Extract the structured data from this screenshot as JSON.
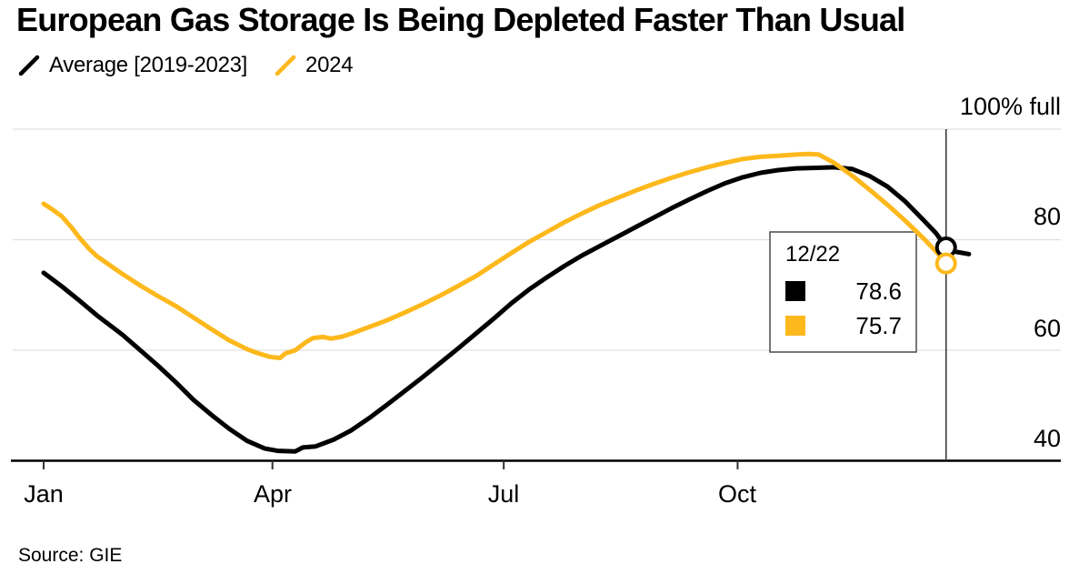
{
  "header": {
    "title": "European Gas Storage Is Being Depleted Faster Than Usual"
  },
  "legend": {
    "items": [
      {
        "label": "Average [2019-2023]",
        "color": "#000000"
      },
      {
        "label": "2024",
        "color": "#fdb81c"
      }
    ]
  },
  "footer": {
    "source": "Source: GIE"
  },
  "colors": {
    "average": "#000000",
    "year2024": "#fdb81c",
    "grid": "#e0e0e0",
    "axis": "#000000",
    "hover_line": "#3a3a3a",
    "tooltip_border": "#4a4a4a"
  },
  "chart_data": {
    "type": "line",
    "title": "European Gas Storage Is Being Depleted Faster Than Usual",
    "unit": "% full",
    "grid": "horizontal",
    "legend_position": "top-left",
    "x_axis": {
      "ticks": [
        "Jan",
        "Apr",
        "Jul",
        "Oct"
      ],
      "range": "Jan 1 - Dec 31"
    },
    "y_axis": {
      "top_label": "100% full",
      "ticks": [
        "80",
        "60",
        "40"
      ],
      "tick_values": [
        80,
        60,
        40
      ],
      "ylim": [
        40,
        100
      ]
    },
    "series": [
      {
        "name": "Average [2019-2023]",
        "color": "#000000",
        "points": [
          [
            "1/1",
            74.0
          ],
          [
            "1/8",
            71.6
          ],
          [
            "1/15",
            69.0
          ],
          [
            "1/22",
            66.3
          ],
          [
            "2/1",
            62.8
          ],
          [
            "2/8",
            60.0
          ],
          [
            "2/15",
            57.2
          ],
          [
            "2/22",
            54.2
          ],
          [
            "3/1",
            51.0
          ],
          [
            "3/8",
            48.3
          ],
          [
            "3/15",
            45.8
          ],
          [
            "3/22",
            43.6
          ],
          [
            "3/29",
            42.2
          ],
          [
            "4/3",
            41.8
          ],
          [
            "4/10",
            41.7
          ],
          [
            "4/13",
            42.4
          ],
          [
            "4/18",
            42.6
          ],
          [
            "4/25",
            43.8
          ],
          [
            "5/2",
            45.5
          ],
          [
            "5/9",
            47.7
          ],
          [
            "5/16",
            50.1
          ],
          [
            "5/23",
            52.6
          ],
          [
            "5/30",
            55.1
          ],
          [
            "6/6",
            57.7
          ],
          [
            "6/13",
            60.3
          ],
          [
            "6/20",
            63.0
          ],
          [
            "6/27",
            65.7
          ],
          [
            "7/4",
            68.5
          ],
          [
            "7/11",
            71.0
          ],
          [
            "7/18",
            73.2
          ],
          [
            "7/25",
            75.3
          ],
          [
            "8/1",
            77.2
          ],
          [
            "8/8",
            78.9
          ],
          [
            "8/15",
            80.6
          ],
          [
            "8/22",
            82.3
          ],
          [
            "8/29",
            84.0
          ],
          [
            "9/5",
            85.7
          ],
          [
            "9/12",
            87.3
          ],
          [
            "9/19",
            88.8
          ],
          [
            "9/26",
            90.2
          ],
          [
            "10/3",
            91.3
          ],
          [
            "10/10",
            92.1
          ],
          [
            "10/17",
            92.6
          ],
          [
            "10/24",
            92.9
          ],
          [
            "11/1",
            93.0
          ],
          [
            "11/8",
            93.1
          ],
          [
            "11/15",
            92.8
          ],
          [
            "11/22",
            91.5
          ],
          [
            "11/29",
            89.6
          ],
          [
            "12/6",
            86.9
          ],
          [
            "12/13",
            83.6
          ],
          [
            "12/18",
            81.2
          ],
          [
            "12/22",
            78.6
          ],
          [
            "12/26",
            77.8
          ],
          [
            "12/31",
            77.4
          ]
        ]
      },
      {
        "name": "2024",
        "color": "#fdb81c",
        "points": [
          [
            "1/1",
            86.5
          ],
          [
            "1/4",
            85.6
          ],
          [
            "1/8",
            84.3
          ],
          [
            "1/12",
            82.2
          ],
          [
            "1/15",
            80.4
          ],
          [
            "1/19",
            78.3
          ],
          [
            "1/22",
            77.0
          ],
          [
            "1/26",
            75.7
          ],
          [
            "2/1",
            73.8
          ],
          [
            "2/8",
            71.7
          ],
          [
            "2/15",
            69.8
          ],
          [
            "2/22",
            68.0
          ],
          [
            "3/1",
            65.9
          ],
          [
            "3/8",
            63.8
          ],
          [
            "3/15",
            61.8
          ],
          [
            "3/22",
            60.2
          ],
          [
            "3/26",
            59.5
          ],
          [
            "3/31",
            58.8
          ],
          [
            "4/4",
            58.6
          ],
          [
            "4/6",
            59.4
          ],
          [
            "4/10",
            60.0
          ],
          [
            "4/14",
            61.4
          ],
          [
            "4/17",
            62.2
          ],
          [
            "4/21",
            62.4
          ],
          [
            "4/24",
            62.1
          ],
          [
            "4/28",
            62.4
          ],
          [
            "5/2",
            63.0
          ],
          [
            "5/9",
            64.2
          ],
          [
            "5/16",
            65.4
          ],
          [
            "5/23",
            66.8
          ],
          [
            "5/30",
            68.3
          ],
          [
            "6/6",
            69.9
          ],
          [
            "6/13",
            71.6
          ],
          [
            "6/20",
            73.4
          ],
          [
            "6/27",
            75.5
          ],
          [
            "7/4",
            77.6
          ],
          [
            "7/11",
            79.6
          ],
          [
            "7/18",
            81.4
          ],
          [
            "7/25",
            83.2
          ],
          [
            "8/1",
            84.8
          ],
          [
            "8/8",
            86.3
          ],
          [
            "8/15",
            87.6
          ],
          [
            "8/22",
            88.9
          ],
          [
            "8/29",
            90.1
          ],
          [
            "9/5",
            91.2
          ],
          [
            "9/12",
            92.2
          ],
          [
            "9/19",
            93.1
          ],
          [
            "9/26",
            93.9
          ],
          [
            "10/3",
            94.6
          ],
          [
            "10/10",
            95.0
          ],
          [
            "10/17",
            95.2
          ],
          [
            "10/24",
            95.4
          ],
          [
            "10/29",
            95.5
          ],
          [
            "11/2",
            95.4
          ],
          [
            "11/8",
            93.9
          ],
          [
            "11/15",
            91.6
          ],
          [
            "11/22",
            89.0
          ],
          [
            "11/29",
            86.3
          ],
          [
            "12/6",
            83.4
          ],
          [
            "12/13",
            80.3
          ],
          [
            "12/18",
            77.9
          ],
          [
            "12/22",
            75.7
          ]
        ]
      }
    ],
    "tooltip": {
      "date": "12/22",
      "rows": [
        {
          "series": "Average [2019-2023]",
          "value": "78.6"
        },
        {
          "series": "2024",
          "value": "75.7"
        }
      ]
    }
  }
}
